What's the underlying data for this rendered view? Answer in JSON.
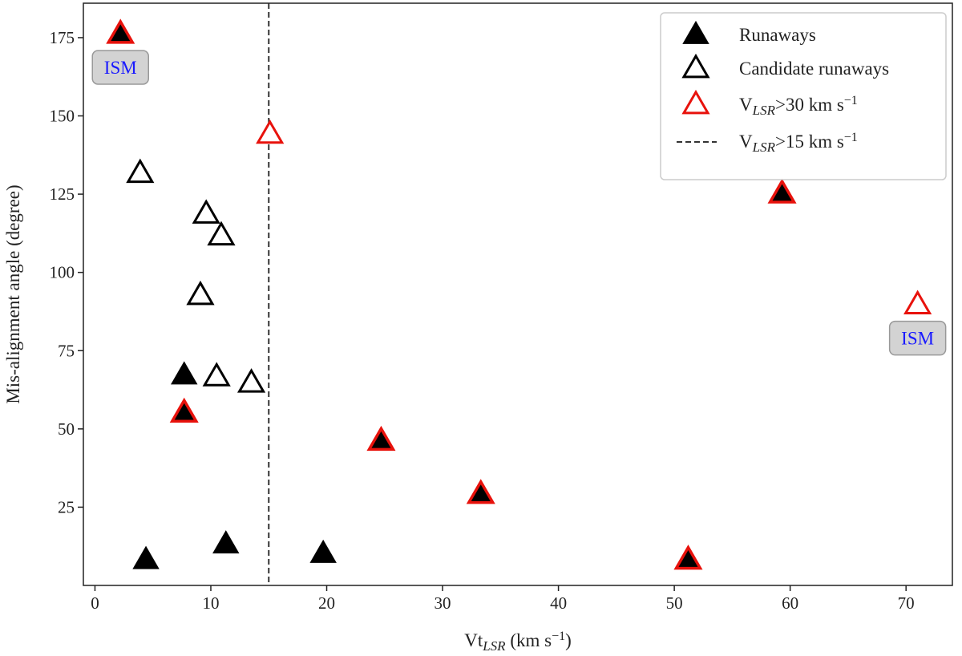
{
  "chart_data": {
    "type": "scatter",
    "xlabel": {
      "main": "Vt",
      "sub": "LSR",
      "rest": " (km s",
      "sup": "−1",
      "end": ")"
    },
    "ylabel": "Mis-alignment angle (degree)",
    "xlim": [
      -1,
      74
    ],
    "ylim": [
      0,
      186
    ],
    "xticks": [
      0,
      10,
      20,
      30,
      40,
      50,
      60,
      70
    ],
    "yticks": [
      25,
      50,
      75,
      100,
      125,
      150,
      175
    ],
    "vline": {
      "x": 15,
      "style": "dashed",
      "color": "#333333"
    },
    "legend": {
      "position": "top-right",
      "entries": [
        {
          "key": "runaways",
          "marker": "filled-triangle",
          "label": "Runaways"
        },
        {
          "key": "candidates",
          "marker": "open-triangle",
          "label": "Candidate runaways"
        },
        {
          "key": "vlsr30",
          "marker": "red-open-triangle",
          "label": {
            "main": "V",
            "sub": "LSR",
            "rest": ">30 km s",
            "sup": "−1"
          }
        },
        {
          "key": "vlsr15",
          "marker": "dashed-line",
          "label": {
            "main": "V",
            "sub": "LSR",
            "rest": ">15 km s",
            "sup": "−1"
          }
        }
      ]
    },
    "series": [
      {
        "key": "runaways",
        "points": [
          [
            4.4,
            8
          ],
          [
            11.3,
            13
          ],
          [
            19.7,
            10
          ],
          [
            7.7,
            67
          ]
        ]
      },
      {
        "key": "candidates",
        "points": [
          [
            3.9,
            131.5
          ],
          [
            9.6,
            118.5
          ],
          [
            10.9,
            111.5
          ],
          [
            9.1,
            92.5
          ],
          [
            10.5,
            66.5
          ],
          [
            13.5,
            64.5
          ]
        ]
      },
      {
        "key": "runaways_vlsr30",
        "points": [
          [
            2.2,
            176
          ],
          [
            7.7,
            55
          ],
          [
            24.7,
            46
          ],
          [
            33.3,
            29
          ],
          [
            51.2,
            8
          ],
          [
            59.3,
            125
          ]
        ]
      },
      {
        "key": "candidates_vlsr30",
        "points": [
          [
            15.1,
            144
          ],
          [
            71.0,
            89.5
          ]
        ]
      }
    ],
    "annotations": [
      {
        "text": "ISM",
        "x": 2.2,
        "y": 165.5
      },
      {
        "text": "ISM",
        "x": 71.0,
        "y": 79
      }
    ]
  },
  "colors": {
    "marker_black": "#000000",
    "marker_red": "#e8120c",
    "ism_text": "#1a1aff",
    "ism_box_fill": "#d3d3d3",
    "ism_box_stroke": "#999999"
  }
}
